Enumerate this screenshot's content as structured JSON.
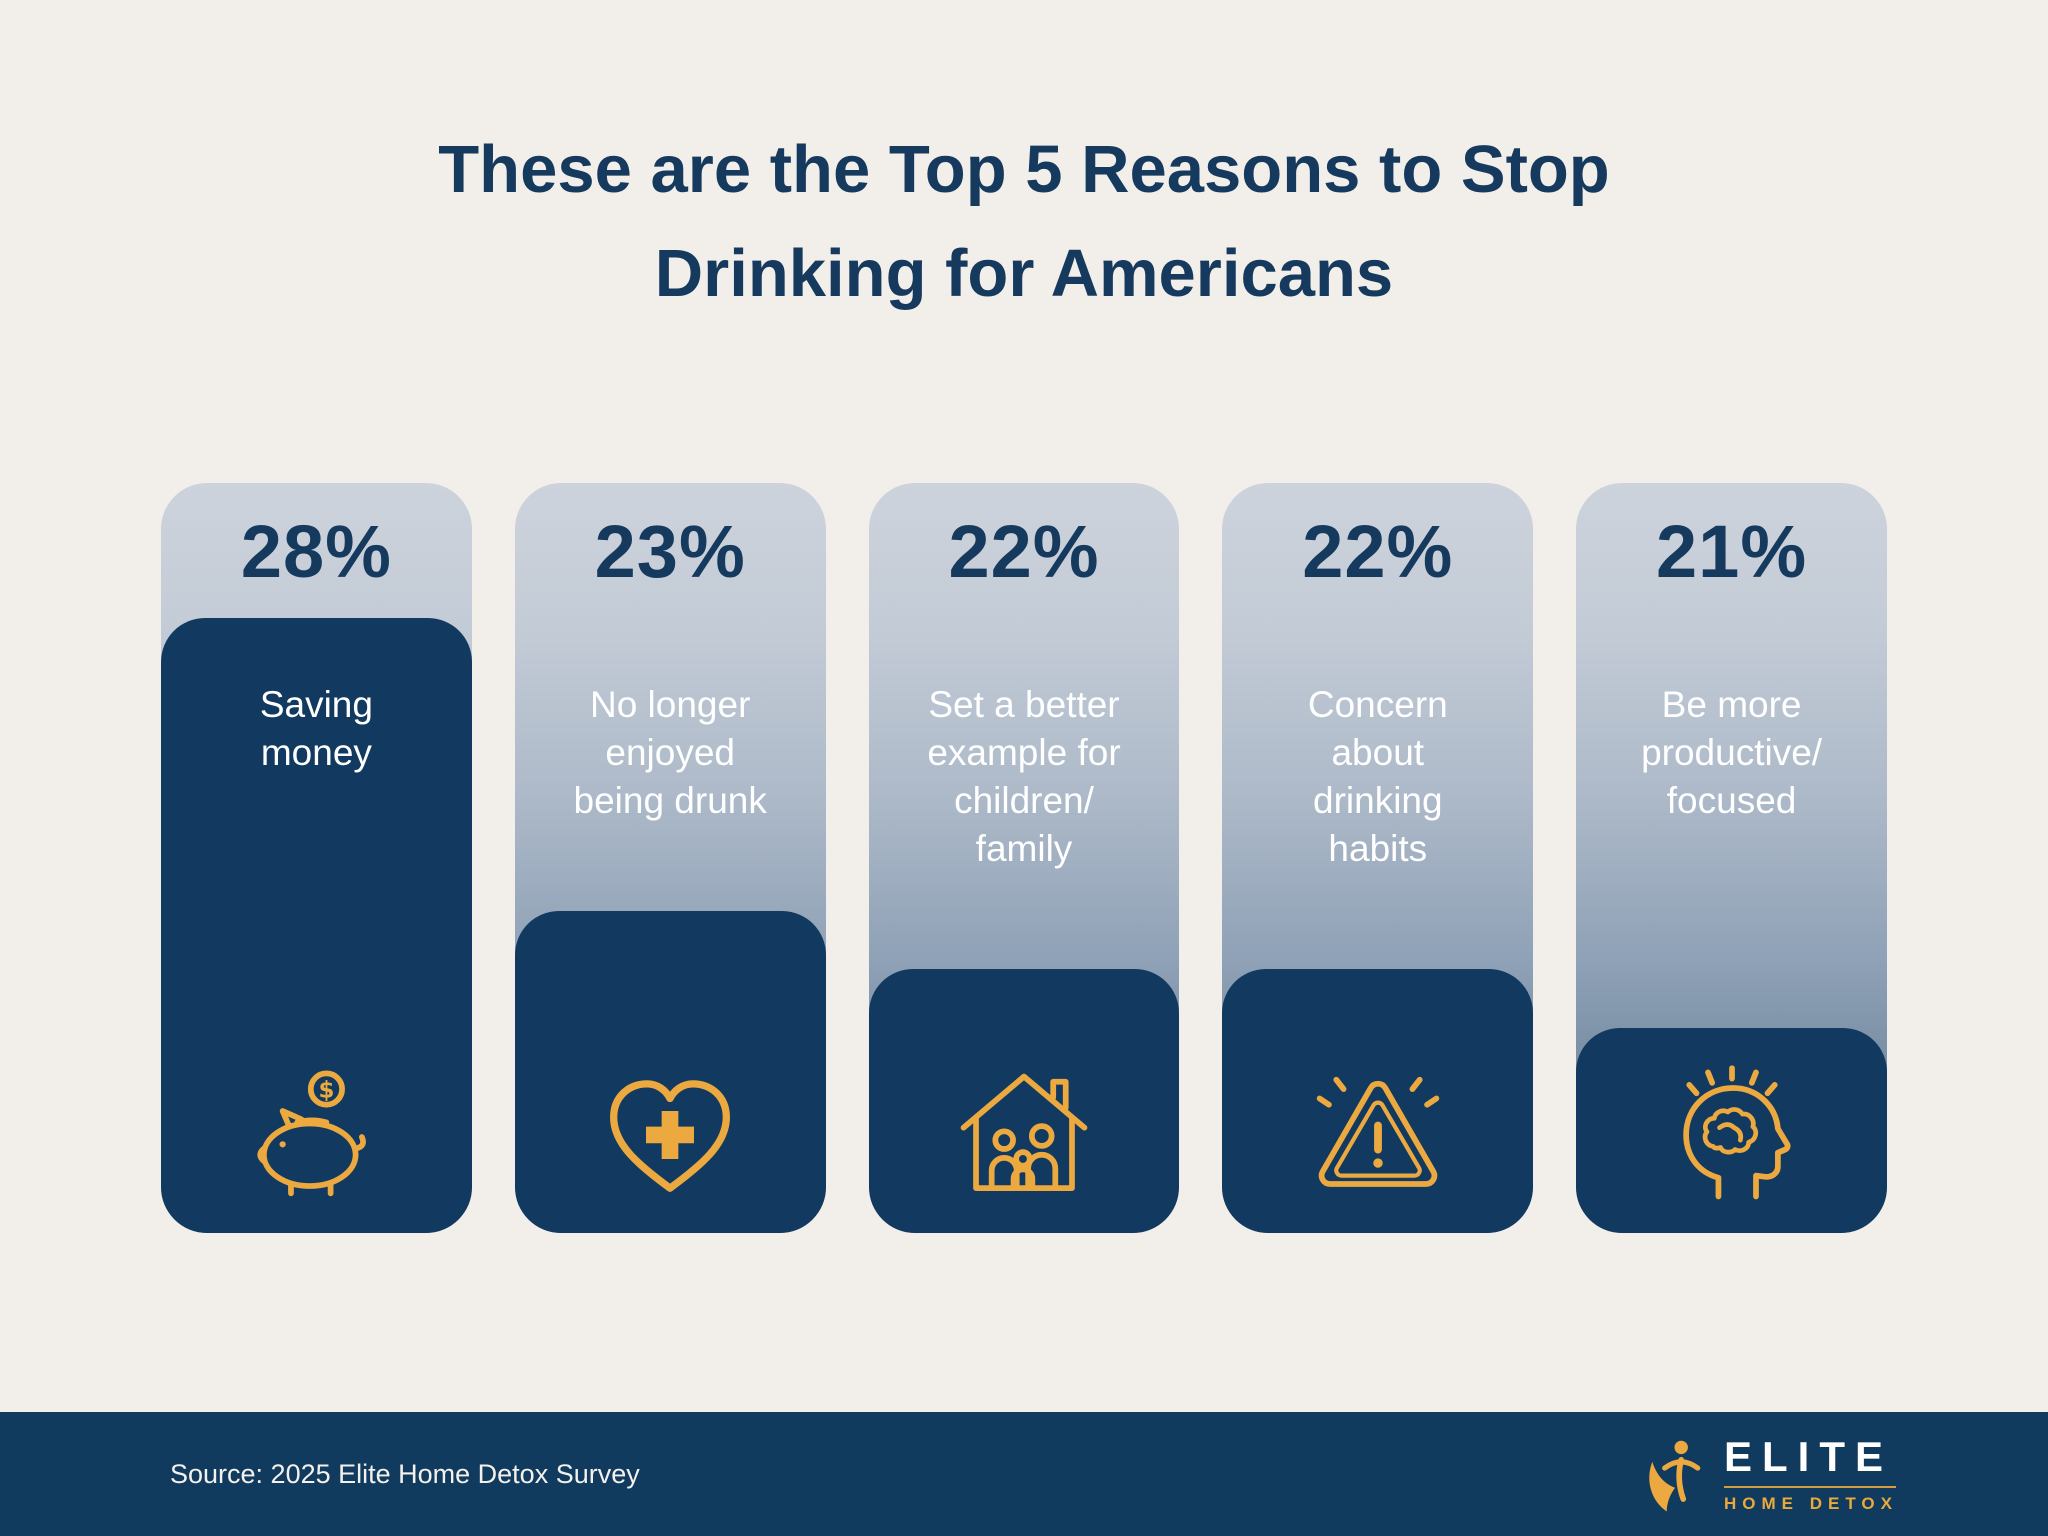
{
  "title": {
    "line1": "These are the Top 5 Reasons to Stop",
    "line2": "Drinking for Americans"
  },
  "cards": [
    {
      "percent": "28%",
      "value": 28,
      "label": "Saving\nmoney",
      "icon": "piggy-bank-icon"
    },
    {
      "percent": "23%",
      "value": 23,
      "label": "No longer\nenjoyed\nbeing drunk",
      "icon": "heart-cross-icon"
    },
    {
      "percent": "22%",
      "value": 22,
      "label": "Set a better\nexample for\nchildren/\nfamily",
      "icon": "family-home-icon"
    },
    {
      "percent": "22%",
      "value": 22,
      "label": "Concern\nabout\ndrinking\nhabits",
      "icon": "warning-icon"
    },
    {
      "percent": "21%",
      "value": 21,
      "label": "Be more\nproductive/\nfocused",
      "icon": "brain-head-icon"
    }
  ],
  "footer": {
    "source": "Source: 2025 Elite Home Detox Survey",
    "logo": {
      "name": "ELITE",
      "subtitle": "HOME DETOX"
    }
  },
  "colors": {
    "background": "#F2EFEA",
    "navy": "#123A60",
    "gold": "#ECA93F",
    "label_text": "#FFFFFF"
  },
  "chart_data": {
    "type": "bar",
    "title": "These are the Top 5 Reasons to Stop Drinking for Americans",
    "categories": [
      "Saving money",
      "No longer enjoyed being drunk",
      "Set a better example for children/family",
      "Concern about drinking habits",
      "Be more productive/focused"
    ],
    "values": [
      28,
      23,
      22,
      22,
      21
    ],
    "unit": "%",
    "ylim": [
      0,
      30
    ],
    "grid": false,
    "legend": "none",
    "source": "Source: 2025 Elite Home Detox Survey"
  }
}
